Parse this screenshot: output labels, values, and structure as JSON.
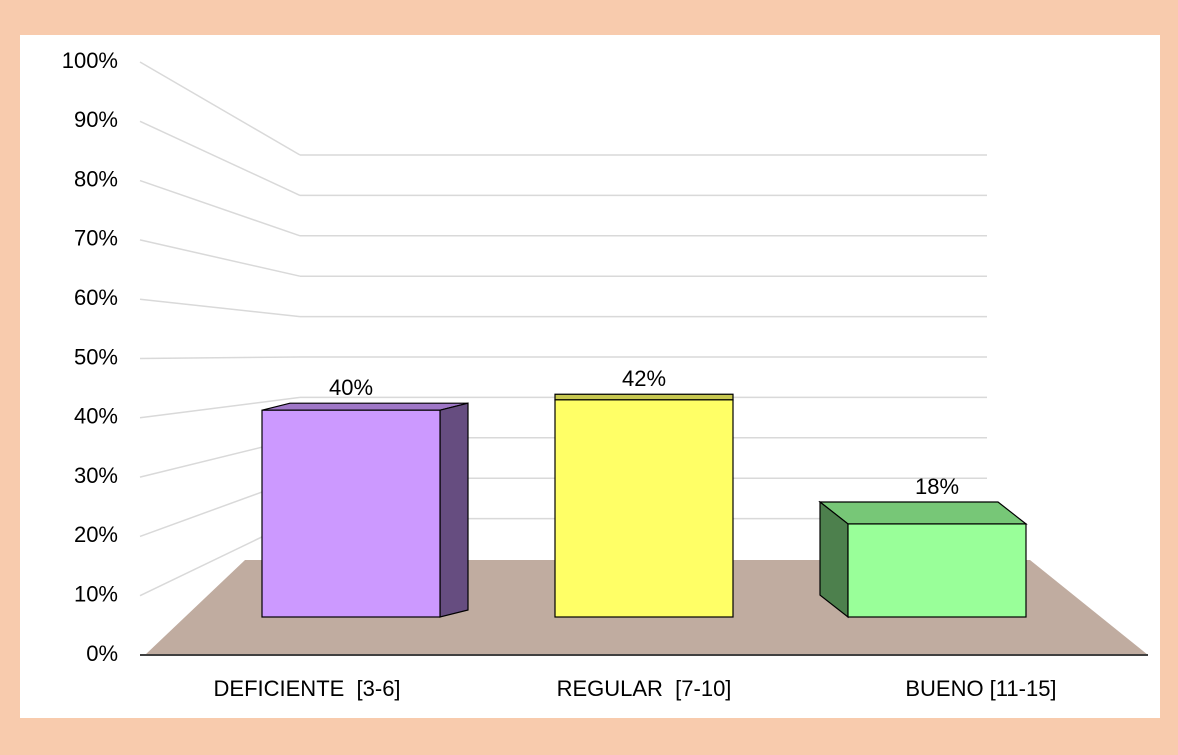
{
  "chart_data": {
    "type": "bar3d",
    "categories": [
      "DEFICIENTE  [3-6]",
      "REGULAR  [7-10]",
      "BUENO [11-15]"
    ],
    "values": [
      40,
      42,
      18
    ],
    "value_labels": [
      "40%",
      "42%",
      "18%"
    ],
    "colors": [
      "#cc99ff",
      "#ffff66",
      "#99ff99"
    ],
    "ylim": [
      0,
      100
    ],
    "yticks": [
      {
        "value": 0,
        "label": "0%"
      },
      {
        "value": 10,
        "label": "10%"
      },
      {
        "value": 20,
        "label": "20%"
      },
      {
        "value": 30,
        "label": "30%"
      },
      {
        "value": 40,
        "label": "40%"
      },
      {
        "value": 50,
        "label": "50%"
      },
      {
        "value": 60,
        "label": "60%"
      },
      {
        "value": 70,
        "label": "70%"
      },
      {
        "value": 80,
        "label": "80%"
      },
      {
        "value": 90,
        "label": "90%"
      },
      {
        "value": 100,
        "label": "100%"
      }
    ],
    "grid": true
  }
}
